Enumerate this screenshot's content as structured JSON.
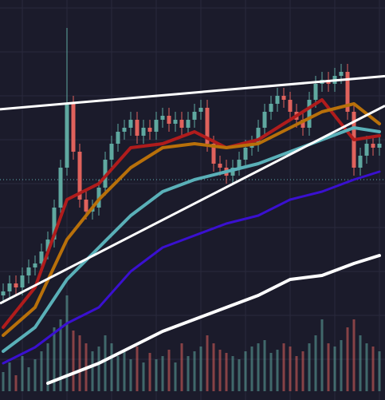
{
  "chart_data": {
    "type": "candlestick",
    "xlim": [
      -0.5,
      59.875
    ],
    "ylim": [
      0,
      100
    ],
    "xticks": [
      3,
      10,
      17,
      24,
      31,
      38,
      45,
      52,
      59
    ],
    "yticks": [
      10,
      21,
      32,
      43,
      54,
      65,
      76,
      87,
      98
    ],
    "grid": true,
    "background": "#1b1b2b",
    "up_color": "#5fa8a0",
    "down_color": "#e0625c",
    "open": [
      26,
      27,
      29,
      28,
      31,
      33,
      34,
      37,
      40,
      48,
      58,
      74,
      62,
      50,
      47,
      48,
      53,
      60,
      64,
      67,
      68,
      70,
      66,
      68,
      67,
      70,
      71,
      69,
      70,
      68,
      70,
      72,
      73,
      64,
      59,
      58,
      56,
      58,
      60,
      63,
      64,
      68,
      72,
      74,
      76,
      75,
      72,
      70,
      68,
      75,
      79,
      80,
      79,
      81,
      82,
      72,
      58,
      61,
      64,
      63
    ],
    "high": [
      29,
      31,
      31,
      33,
      35,
      36,
      39,
      42,
      50,
      60,
      93,
      76,
      64,
      52,
      50,
      55,
      62,
      66,
      69,
      70,
      72,
      72,
      70,
      70,
      72,
      73,
      73,
      72,
      72,
      72,
      74,
      75,
      75,
      66,
      61,
      60,
      60,
      62,
      65,
      66,
      70,
      74,
      76,
      78,
      78,
      77,
      74,
      72,
      77,
      81,
      82,
      82,
      83,
      84,
      84,
      74,
      63,
      66,
      66,
      66
    ],
    "low": [
      24,
      25,
      26,
      26,
      29,
      31,
      32,
      35,
      38,
      46,
      56,
      60,
      48,
      45,
      45,
      46,
      51,
      58,
      62,
      65,
      66,
      64,
      64,
      65,
      65,
      68,
      67,
      67,
      66,
      66,
      68,
      70,
      62,
      57,
      56,
      54,
      54,
      56,
      58,
      61,
      62,
      66,
      70,
      72,
      73,
      70,
      68,
      66,
      66,
      73,
      77,
      77,
      77,
      79,
      70,
      56,
      56,
      59,
      61,
      61
    ],
    "close": [
      27,
      29,
      28,
      31,
      33,
      34,
      37,
      40,
      48,
      58,
      74,
      62,
      50,
      47,
      48,
      53,
      60,
      64,
      67,
      68,
      70,
      66,
      68,
      67,
      70,
      71,
      69,
      70,
      68,
      70,
      72,
      73,
      64,
      59,
      58,
      56,
      58,
      60,
      63,
      64,
      68,
      72,
      74,
      76,
      75,
      72,
      70,
      68,
      75,
      79,
      80,
      79,
      81,
      82,
      72,
      58,
      61,
      64,
      63,
      64
    ],
    "volume": [
      12,
      18,
      10,
      22,
      15,
      20,
      25,
      30,
      40,
      45,
      60,
      38,
      35,
      30,
      25,
      28,
      35,
      30,
      22,
      25,
      20,
      28,
      18,
      24,
      20,
      22,
      26,
      18,
      30,
      22,
      25,
      28,
      35,
      30,
      26,
      24,
      22,
      20,
      25,
      28,
      30,
      32,
      24,
      26,
      30,
      28,
      22,
      25,
      30,
      35,
      45,
      30,
      28,
      32,
      40,
      45,
      35,
      30,
      28,
      25
    ],
    "volume_lim": [
      0,
      250
    ],
    "price_line": 55,
    "price_line_color": "#5fb0b0",
    "series": [
      {
        "color": "#b01c1c",
        "width": 4,
        "x": [
          0,
          5,
          10,
          15,
          20,
          25,
          30,
          35,
          40,
          45,
          50,
          55,
          59
        ],
        "values": [
          18,
          28,
          50,
          54,
          63,
          64,
          67,
          63,
          65,
          70,
          75,
          65,
          66
        ]
      },
      {
        "color": "#b8700a",
        "width": 4,
        "x": [
          0,
          5,
          10,
          15,
          20,
          25,
          30,
          35,
          40,
          45,
          50,
          55,
          59
        ],
        "values": [
          16,
          23,
          40,
          50,
          58,
          63,
          64,
          63,
          64,
          68,
          72,
          74,
          69
        ]
      },
      {
        "color": "#5ab0b8",
        "width": 4,
        "x": [
          0,
          5,
          10,
          15,
          20,
          25,
          30,
          35,
          40,
          45,
          50,
          55,
          59
        ],
        "values": [
          12,
          18,
          30,
          38,
          46,
          52,
          55,
          57,
          59,
          62,
          65,
          68,
          67
        ]
      },
      {
        "color": "#3a10d0",
        "width": 3,
        "x": [
          0,
          5,
          10,
          15,
          20,
          25,
          30,
          35,
          40,
          45,
          50,
          55,
          59
        ],
        "values": [
          9,
          13,
          19,
          23,
          32,
          38,
          41,
          44,
          46,
          50,
          52,
          55,
          57
        ]
      },
      {
        "color": "#ffffff",
        "width": 4,
        "x": [
          7,
          15,
          20,
          25,
          30,
          35,
          40,
          45,
          50,
          55,
          59
        ],
        "values": [
          4,
          9,
          13,
          17,
          20,
          23,
          26,
          30,
          31,
          34,
          36
        ]
      }
    ],
    "trendlines": [
      {
        "color": "#ffffff",
        "x": [
          0,
          59
        ],
        "values": [
          72.7,
          80.8
        ]
      },
      {
        "color": "#ffffff",
        "x": [
          0,
          59
        ],
        "values": [
          24.4,
          72.8
        ]
      }
    ]
  }
}
